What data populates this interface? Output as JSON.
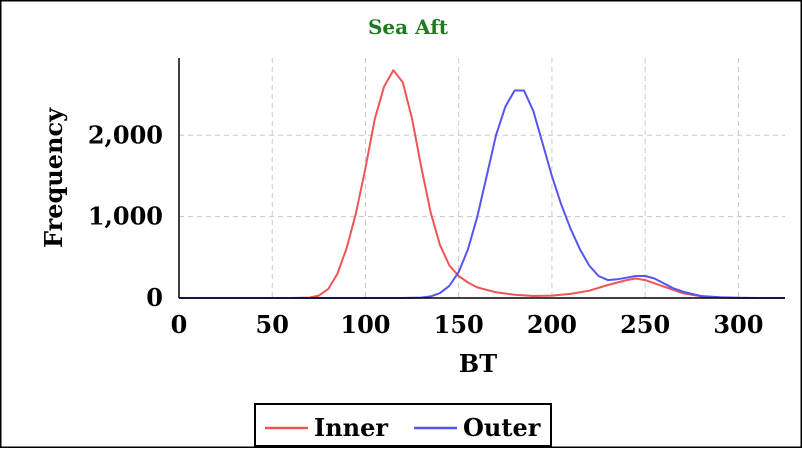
{
  "chart_data": {
    "type": "line",
    "title": "Sea Aft",
    "xlabel": "BT",
    "ylabel": "Frequency",
    "xlim": [
      0,
      325
    ],
    "ylim": [
      0,
      2950
    ],
    "x_ticks": [
      0,
      50,
      100,
      150,
      200,
      250,
      300
    ],
    "x_tick_labels": [
      "0",
      "50",
      "100",
      "150",
      "200",
      "250",
      "300"
    ],
    "y_ticks": [
      0,
      1000,
      2000
    ],
    "y_tick_labels": [
      "0",
      "1,000",
      "2,000"
    ],
    "grid": true,
    "legend_position": "bottom-center",
    "colors": {
      "title": "#1f7a1f",
      "inner": "#f05555",
      "outer": "#5555f0",
      "grid": "#c8c8c8"
    },
    "series": [
      {
        "name": "Inner",
        "x": [
          0,
          60,
          70,
          75,
          80,
          85,
          90,
          95,
          100,
          105,
          110,
          115,
          120,
          125,
          130,
          135,
          140,
          145,
          150,
          155,
          160,
          170,
          180,
          190,
          200,
          210,
          220,
          230,
          240,
          245,
          250,
          260,
          270,
          280,
          290,
          300,
          310,
          325
        ],
        "y": [
          0,
          0,
          5,
          30,
          110,
          300,
          620,
          1050,
          1600,
          2200,
          2600,
          2800,
          2650,
          2200,
          1600,
          1050,
          650,
          400,
          270,
          190,
          130,
          70,
          40,
          25,
          30,
          50,
          90,
          160,
          220,
          240,
          220,
          140,
          60,
          20,
          5,
          0,
          0,
          0
        ]
      },
      {
        "name": "Outer",
        "x": [
          0,
          120,
          130,
          135,
          140,
          145,
          150,
          155,
          160,
          165,
          170,
          175,
          180,
          185,
          190,
          195,
          200,
          205,
          210,
          215,
          220,
          225,
          230,
          235,
          240,
          245,
          250,
          255,
          260,
          265,
          270,
          275,
          280,
          290,
          300,
          310,
          325
        ],
        "y": [
          0,
          0,
          5,
          20,
          60,
          150,
          320,
          600,
          1000,
          1500,
          2000,
          2350,
          2550,
          2550,
          2300,
          1900,
          1500,
          1150,
          850,
          600,
          400,
          270,
          220,
          230,
          250,
          270,
          270,
          240,
          180,
          120,
          80,
          50,
          25,
          8,
          2,
          0,
          0
        ]
      }
    ]
  }
}
